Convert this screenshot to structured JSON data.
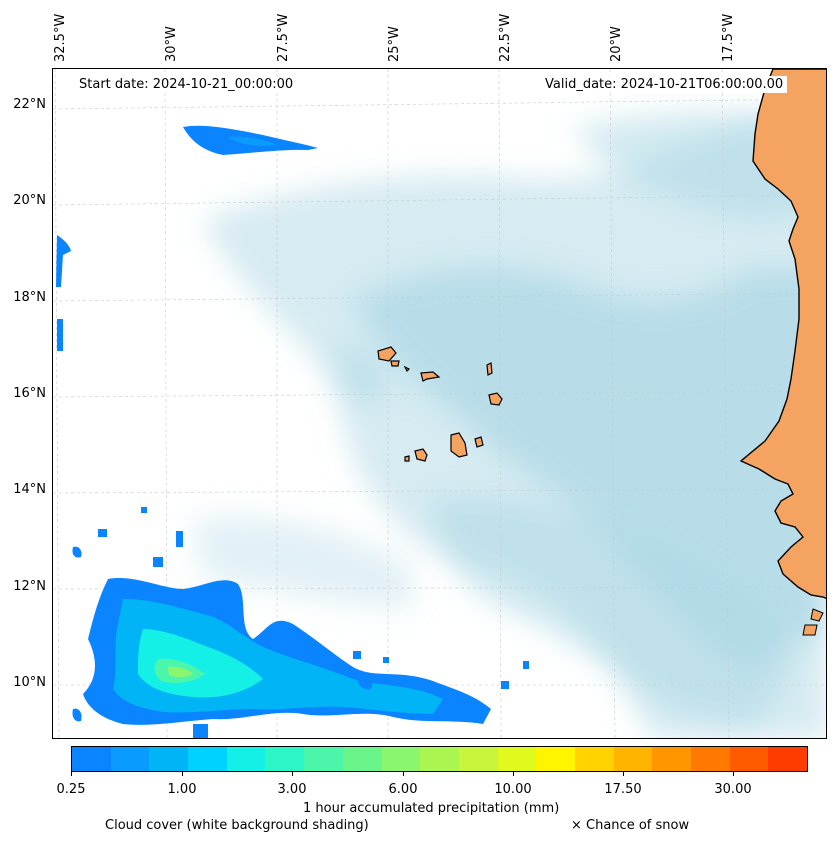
{
  "start_date": "Start date: 2024-10-21_00:00:00",
  "valid_date": "Valid_date: 2024-10-21T06:00:00.00",
  "lon_labels": [
    "32.5°W",
    "30°W",
    "27.5°W",
    "25°W",
    "22.5°W",
    "20°W",
    "17.5°W"
  ],
  "lat_labels": [
    "22°N",
    "20°N",
    "18°N",
    "16°N",
    "14°N",
    "12°N",
    "10°N"
  ],
  "colorbar": {
    "label": "1 hour accumulated precipitation (mm)",
    "tick_labels": [
      "0.25",
      "1.00",
      "3.00",
      "6.00",
      "10.00",
      "17.50",
      "30.00"
    ],
    "colors": [
      "#0a84ff",
      "#0a9bff",
      "#00b4f5",
      "#00d2ff",
      "#14f0e6",
      "#2cf5c8",
      "#4bf5aa",
      "#6af58a",
      "#8cf56e",
      "#aaf550",
      "#c8f53c",
      "#e1fa1e",
      "#fff500",
      "#ffd200",
      "#ffb400",
      "#ff9600",
      "#ff7800",
      "#ff5a00",
      "#ff3c00"
    ]
  },
  "legend": {
    "cloud_cover": "Cloud cover (white background shading)",
    "snow": "× Chance of snow"
  },
  "colors": {
    "land": "#f4a460",
    "cloud": "#add8e6",
    "coast": "#000000",
    "grid": "#cccccc"
  }
}
